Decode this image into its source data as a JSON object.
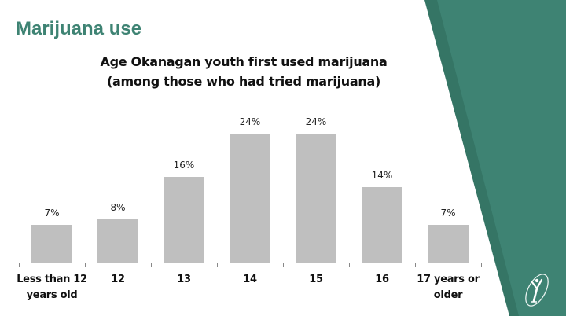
{
  "slide": {
    "title": "Marijuana use",
    "accent_color": "#3e8373",
    "accent_dark": "#357565",
    "logo_icon": "youth-figure-logo-icon"
  },
  "chart_data": {
    "type": "bar",
    "title": "Age Okanagan youth first used marijuana",
    "subtitle": "(among those who had tried marijuana)",
    "categories": [
      "Less than 12 years old",
      "12",
      "13",
      "14",
      "15",
      "16",
      "17 years or older"
    ],
    "category_lines": [
      [
        "Less than 12",
        "years old"
      ],
      [
        "12",
        ""
      ],
      [
        "13",
        ""
      ],
      [
        "14",
        ""
      ],
      [
        "15",
        ""
      ],
      [
        "16",
        ""
      ],
      [
        "17 years or",
        "older"
      ]
    ],
    "values": [
      7,
      8,
      16,
      24,
      24,
      14,
      7
    ],
    "labels": [
      "7%",
      "8%",
      "16%",
      "24%",
      "24%",
      "14%",
      "7%"
    ],
    "xlabel": "",
    "ylabel": "",
    "ylim": [
      0,
      28
    ],
    "grid": false,
    "legend": "none",
    "bar_color": "#bfbfbf"
  }
}
